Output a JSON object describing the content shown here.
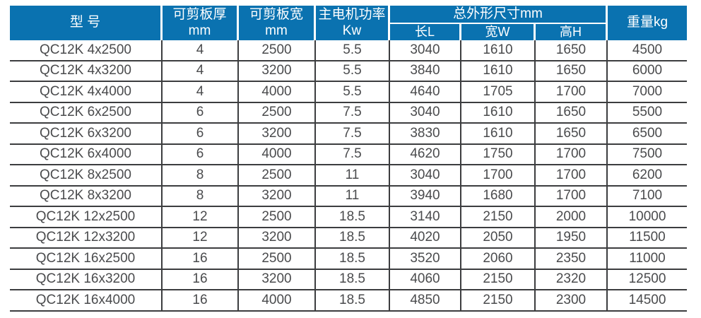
{
  "chart_data": {
    "type": "table",
    "header": {
      "model": "型 号",
      "thickness": "可剪板厚mm",
      "sheet_width": "可剪板宽mm",
      "motor_power": "主电机功率Kw",
      "overall_dims": "总外形尺寸mm",
      "length": "长L",
      "width": "宽W",
      "height": "高H",
      "weight": "重量kg"
    },
    "rows": [
      [
        "QC12K 4x2500",
        "4",
        "2500",
        "5.5",
        "3040",
        "1610",
        "1650",
        "4500"
      ],
      [
        "QC12K 4x3200",
        "4",
        "3200",
        "5.5",
        "3840",
        "1610",
        "1650",
        "6000"
      ],
      [
        "QC12K 4x4000",
        "4",
        "4000",
        "5.5",
        "4640",
        "1705",
        "1700",
        "7000"
      ],
      [
        "QC12K 6x2500",
        "6",
        "2500",
        "7.5",
        "3040",
        "1610",
        "1650",
        "5500"
      ],
      [
        "QC12K 6x3200",
        "6",
        "3200",
        "7.5",
        "3830",
        "1610",
        "1650",
        "6500"
      ],
      [
        "QC12K 6x4000",
        "6",
        "4000",
        "7.5",
        "4620",
        "1750",
        "1700",
        "7500"
      ],
      [
        "QC12K 8x2500",
        "8",
        "2500",
        "11",
        "3040",
        "1700",
        "1700",
        "6200"
      ],
      [
        "QC12K 8x3200",
        "8",
        "3200",
        "11",
        "3940",
        "1680",
        "1700",
        "7100"
      ],
      [
        "QC12K 12x2500",
        "12",
        "2500",
        "18.5",
        "3140",
        "2150",
        "2000",
        "10000"
      ],
      [
        "QC12K 12x3200",
        "12",
        "3200",
        "18.5",
        "4020",
        "2050",
        "1950",
        "11500"
      ],
      [
        "QC12K 16x2500",
        "16",
        "2500",
        "18.5",
        "3520",
        "2060",
        "2350",
        "11000"
      ],
      [
        "QC12K 16x3200",
        "16",
        "3200",
        "18.5",
        "4060",
        "2150",
        "2320",
        "12500"
      ],
      [
        "QC12K 16x4000",
        "16",
        "4000",
        "18.5",
        "4850",
        "2150",
        "2300",
        "14500"
      ]
    ],
    "colors": {
      "header_bg": "#0a72b0",
      "header_text": "#ffffff",
      "body_text": "#4a4b4d",
      "grid_line": "#3c3d3f"
    },
    "layout": {
      "grid": "on",
      "title": ""
    }
  }
}
